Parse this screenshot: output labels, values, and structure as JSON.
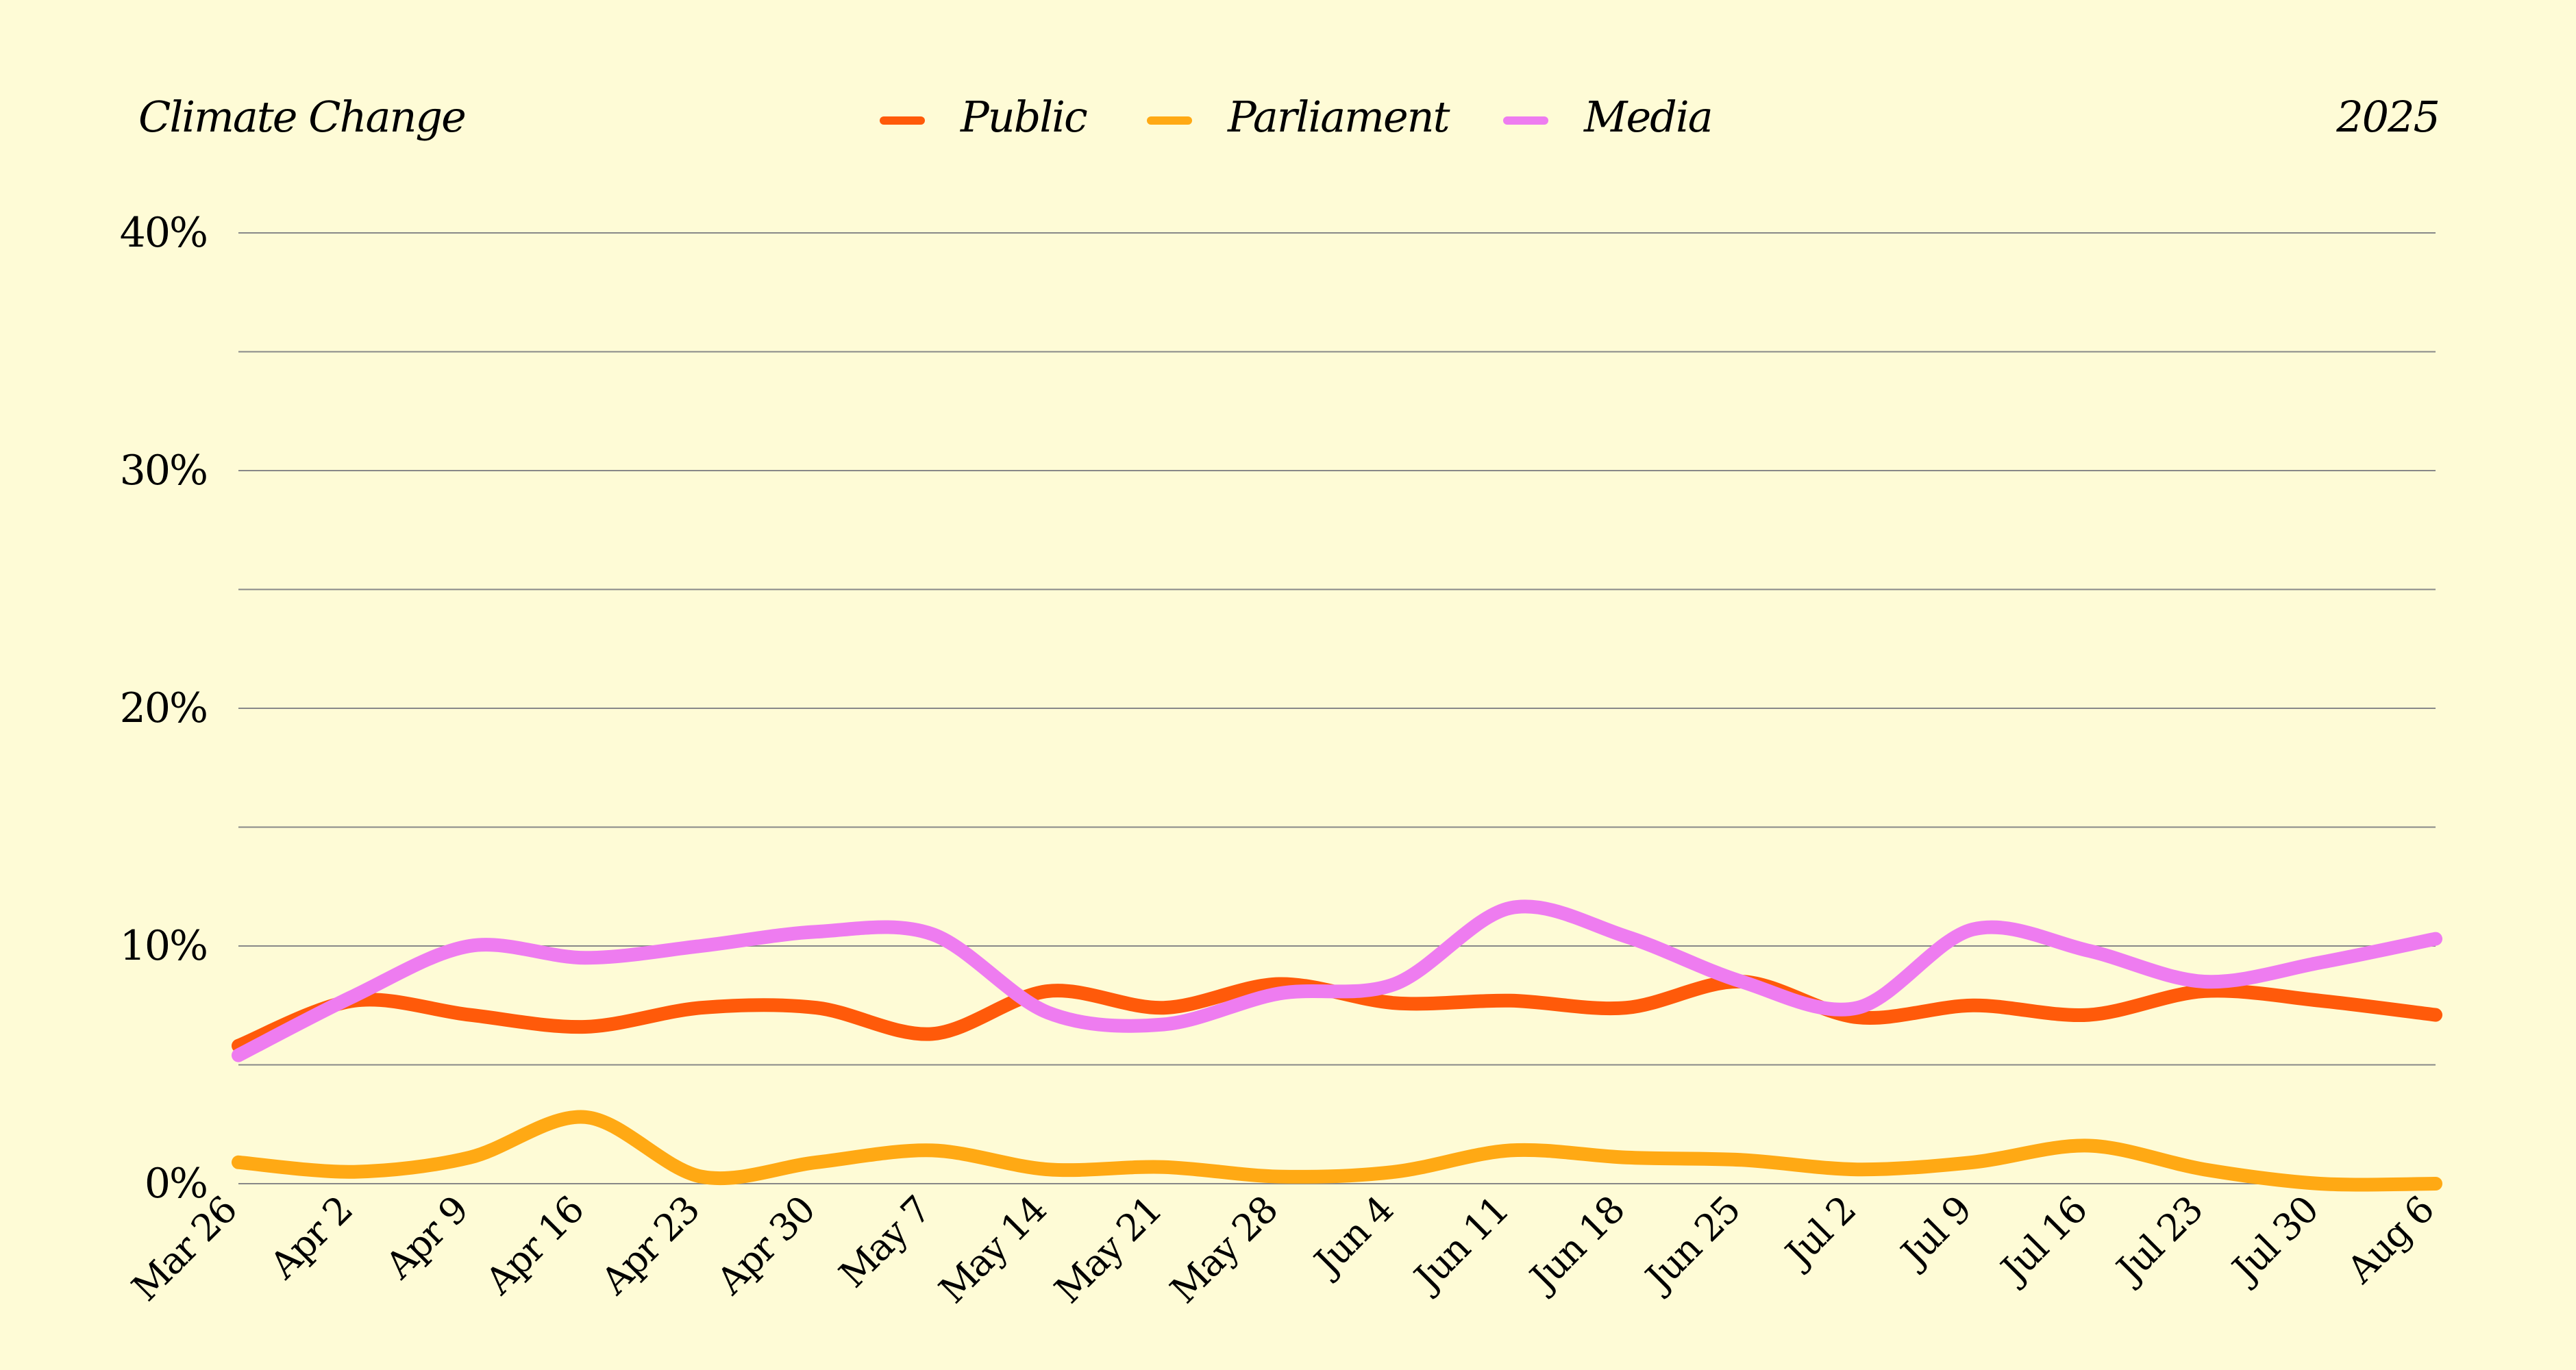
{
  "chart_data": {
    "type": "line",
    "title": "Climate Change",
    "year": "2025",
    "categories": [
      "Mar 26",
      "Apr 2",
      "Apr 9",
      "Apr 16",
      "Apr 23",
      "Apr 30",
      "May 7",
      "May 14",
      "May 21",
      "May 28",
      "Jun 4",
      "Jun 11",
      "Jun 18",
      "Jun 25",
      "Jul 2",
      "Jul 9",
      "Jul 16",
      "Jul 23",
      "Jul 30",
      "Aug 6"
    ],
    "yticks": [
      {
        "value": 0,
        "label": "0%"
      },
      {
        "value": 10,
        "label": "10%"
      },
      {
        "value": 20,
        "label": "20%"
      },
      {
        "value": 30,
        "label": "30%"
      },
      {
        "value": 40,
        "label": "40%"
      }
    ],
    "ylim": [
      0,
      40
    ],
    "minor_grid": [
      5,
      15,
      25,
      35
    ],
    "grid": true,
    "legend_position": "top-center",
    "series": [
      {
        "name": "Public",
        "color": "#FF5A0A",
        "values": [
          5.8,
          7.7,
          7.1,
          6.6,
          7.4,
          7.4,
          6.3,
          8.1,
          7.4,
          8.4,
          7.6,
          7.7,
          7.4,
          8.5,
          7.0,
          7.5,
          7.1,
          8.1,
          7.7,
          7.1
        ]
      },
      {
        "name": "Parliament",
        "color": "#FFA914",
        "values": [
          0.9,
          0.5,
          1.1,
          2.8,
          0.3,
          0.9,
          1.4,
          0.6,
          0.7,
          0.3,
          0.5,
          1.4,
          1.1,
          1.0,
          0.6,
          0.9,
          1.6,
          0.6,
          0.0,
          0.0
        ]
      },
      {
        "name": "Media",
        "color": "#EE7CF0",
        "values": [
          5.4,
          7.9,
          10.0,
          9.5,
          10.0,
          10.6,
          10.5,
          7.2,
          6.7,
          8.0,
          8.4,
          11.6,
          10.4,
          8.5,
          7.4,
          10.7,
          9.8,
          8.5,
          9.3,
          10.3
        ]
      }
    ]
  }
}
